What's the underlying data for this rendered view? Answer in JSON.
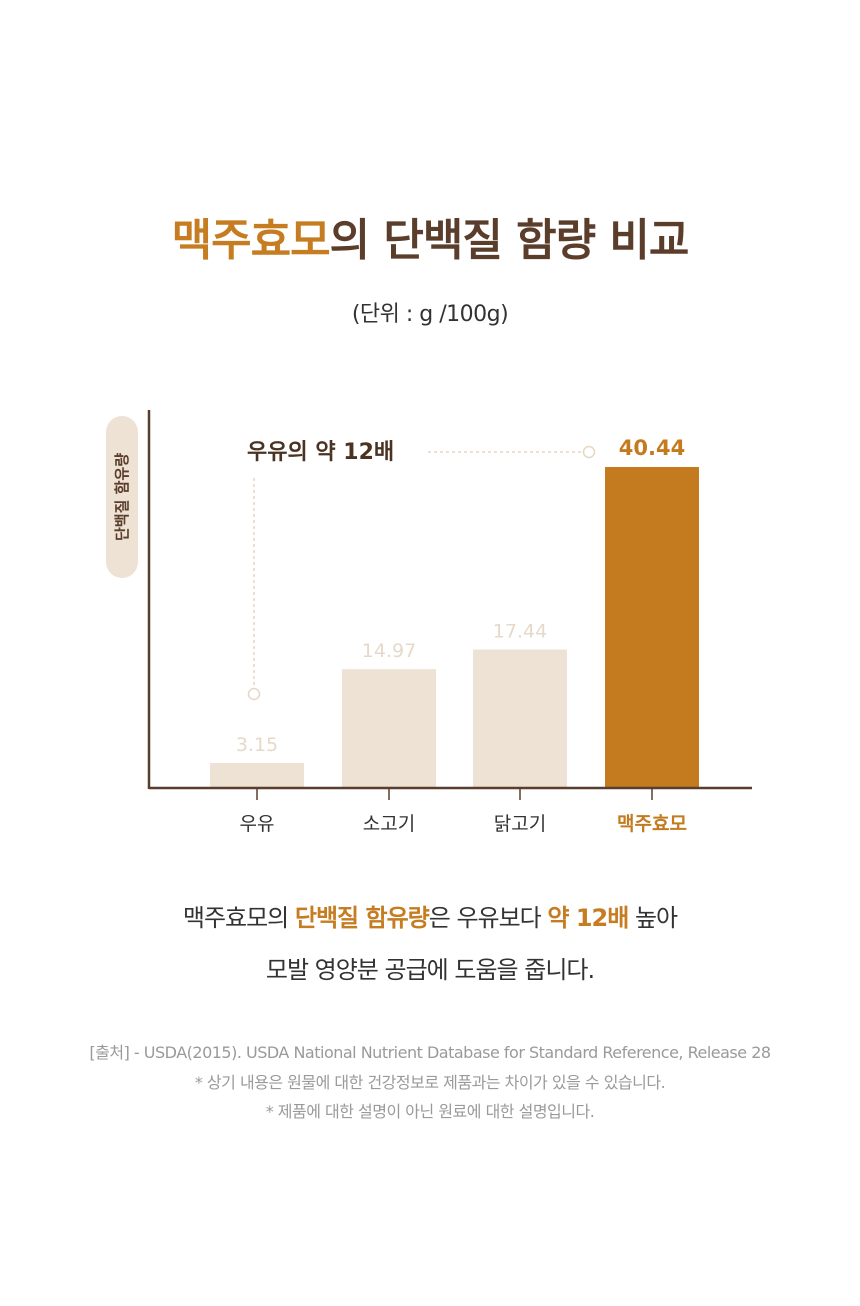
{
  "title": {
    "highlight": "맥주효모",
    "rest": "의 단백질 함량 비교"
  },
  "unit": "(단위 : g /100g)",
  "chart_data": {
    "type": "bar",
    "title": "맥주효모의 단백질 함량 비교",
    "ylabel": "단백질 함유량",
    "xlabel": "",
    "categories": [
      "우유",
      "소고기",
      "닭고기",
      "맥주효모"
    ],
    "values": [
      3.15,
      14.97,
      17.44,
      40.44
    ],
    "value_labels": [
      "3.15",
      "14.97",
      "17.44",
      "40.44"
    ],
    "highlight_index": 3,
    "annotation": "우유의 약 12배",
    "ylim": [
      0,
      42
    ],
    "grid": false,
    "colors": {
      "normal": "#ede2d4",
      "highlight": "#c47b20",
      "axis": "#5b3d2b",
      "label_normal": "#e6d9c9"
    }
  },
  "body": {
    "line1_a": "맥주효모의 ",
    "line1_hl1": "단백질 함유량",
    "line1_b": "은 우유보다 ",
    "line1_hl2": "약 12배",
    "line1_c": " 높아",
    "line2": "모발 영양분 공급에 도움을 줍니다."
  },
  "footer": [
    "[출처] - USDA(2015). USDA National Nutrient Database for Standard Reference, Release 28",
    "* 상기 내용은 원물에 대한 건강정보로 제품과는 차이가 있을 수 있습니다.",
    "* 제품에 대한 설명이 아닌 원료에 대한 설명입니다."
  ]
}
